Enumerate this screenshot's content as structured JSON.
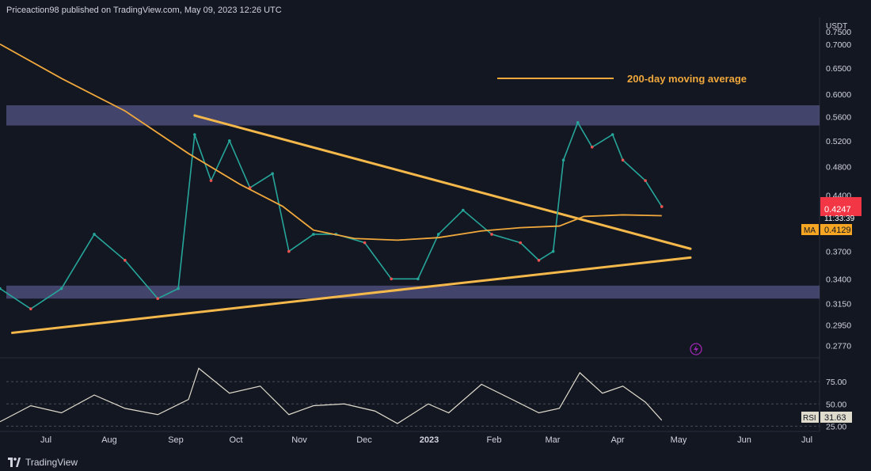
{
  "header": {
    "publisher": "Priceaction98 published on TradingView.com, May 09, 2023 12:26 UTC"
  },
  "footer": {
    "brand": "TradingView"
  },
  "legend": {
    "label": "200-day moving average"
  },
  "price_axis": {
    "currency": "USDT",
    "ticks": [
      "0.7500",
      "0.7000",
      "0.6500",
      "0.6000",
      "0.5600",
      "0.5200",
      "0.4800",
      "0.4400",
      "0.3700",
      "0.3400",
      "0.3150",
      "0.2950",
      "0.2770"
    ],
    "last_price": "0.4247",
    "countdown": "11:33:39",
    "ma_label": "MA",
    "ma_value": "0.4129"
  },
  "rsi_axis": {
    "ticks": [
      "75.00",
      "50.00",
      "25.00"
    ],
    "label": "RSI",
    "value": "31.63"
  },
  "time_axis": [
    "Jul",
    "Aug",
    "Sep",
    "Oct",
    "Nov",
    "Dec",
    "2023",
    "Feb",
    "Mar",
    "Apr",
    "May",
    "Jun",
    "Jul"
  ],
  "colors": {
    "up": "#26a69a",
    "down": "#ef5350",
    "ma": "#f0a83c",
    "trendline": "#f5b84a",
    "zone": "#6b6aa8",
    "rsi": "#e0dccd",
    "price_tag": "#f23645",
    "ma_tag": "#f6a623"
  },
  "chart_data": {
    "type": "line",
    "symbol": "USDT",
    "price_series": {
      "name": "Price",
      "x": [
        "2022-06-20",
        "2022-07-05",
        "2022-07-20",
        "2022-08-05",
        "2022-08-20",
        "2022-09-05",
        "2022-09-15",
        "2022-09-23",
        "2022-10-01",
        "2022-10-10",
        "2022-10-20",
        "2022-10-31",
        "2022-11-08",
        "2022-11-20",
        "2022-12-01",
        "2022-12-15",
        "2022-12-28",
        "2023-01-10",
        "2023-01-20",
        "2023-02-01",
        "2023-02-15",
        "2023-03-01",
        "2023-03-10",
        "2023-03-17",
        "2023-03-22",
        "2023-03-29",
        "2023-04-05",
        "2023-04-15",
        "2023-04-20",
        "2023-05-01",
        "2023-05-09"
      ],
      "values": [
        0.33,
        0.31,
        0.33,
        0.39,
        0.36,
        0.32,
        0.33,
        0.53,
        0.46,
        0.52,
        0.45,
        0.47,
        0.37,
        0.39,
        0.39,
        0.38,
        0.34,
        0.34,
        0.39,
        0.42,
        0.39,
        0.38,
        0.36,
        0.37,
        0.49,
        0.55,
        0.51,
        0.53,
        0.49,
        0.46,
        0.4247
      ]
    },
    "series": [
      {
        "name": "200-day moving average",
        "x": [
          "2022-06-20",
          "2022-07-20",
          "2022-08-20",
          "2022-09-20",
          "2022-10-15",
          "2022-11-05",
          "2022-11-20",
          "2022-12-10",
          "2022-12-31",
          "2023-01-20",
          "2023-02-10",
          "2023-03-01",
          "2023-03-20",
          "2023-04-01",
          "2023-04-20",
          "2023-05-09"
        ],
        "values": [
          0.7,
          0.63,
          0.57,
          0.5,
          0.455,
          0.425,
          0.395,
          0.385,
          0.383,
          0.386,
          0.394,
          0.398,
          0.4,
          0.412,
          0.414,
          0.4129
        ]
      },
      {
        "name": "RSI",
        "x": [
          "2022-06-20",
          "2022-07-05",
          "2022-07-20",
          "2022-08-05",
          "2022-08-20",
          "2022-09-05",
          "2022-09-20",
          "2022-09-25",
          "2022-10-10",
          "2022-10-25",
          "2022-11-08",
          "2022-11-20",
          "2022-12-05",
          "2022-12-20",
          "2022-12-31",
          "2023-01-15",
          "2023-01-25",
          "2023-02-10",
          "2023-02-25",
          "2023-03-10",
          "2023-03-20",
          "2023-03-30",
          "2023-04-10",
          "2023-04-20",
          "2023-05-01",
          "2023-05-09"
        ],
        "values": [
          30,
          48,
          40,
          60,
          45,
          38,
          55,
          90,
          62,
          70,
          38,
          48,
          50,
          42,
          28,
          50,
          40,
          72,
          55,
          40,
          45,
          85,
          62,
          70,
          52,
          31.63
        ]
      }
    ],
    "annotations": [
      "200-day moving average"
    ],
    "zones": [
      {
        "low": 0.545,
        "high": 0.58
      },
      {
        "low": 0.32,
        "high": 0.333
      }
    ],
    "trendlines": [
      {
        "from": [
          "2022-09-23",
          0.562
        ],
        "to": [
          "2023-05-23",
          0.373
        ]
      },
      {
        "from": [
          "2022-06-26",
          0.288
        ],
        "to": [
          "2023-05-23",
          0.363
        ]
      }
    ],
    "ylabel": "USDT",
    "ylim": [
      0.268,
      0.76
    ],
    "rsi_ylim": [
      20,
      100
    ],
    "log_scale": true,
    "grid": false
  }
}
